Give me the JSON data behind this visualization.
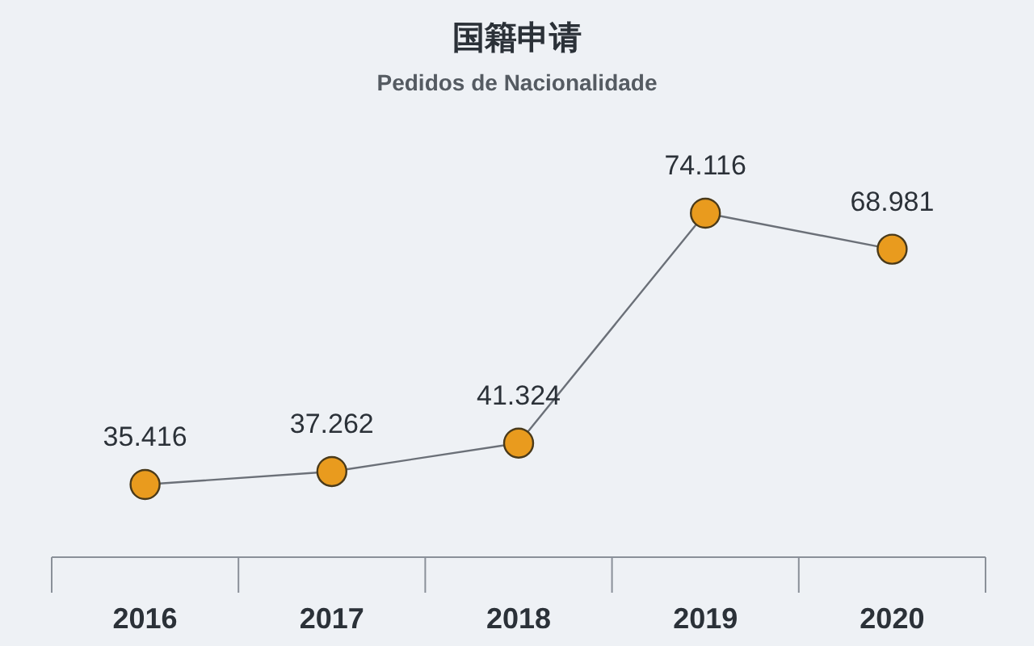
{
  "chart_data": {
    "type": "line",
    "title": "国籍申请",
    "subtitle": "Pedidos de Nacionalidade",
    "categories": [
      "2016",
      "2017",
      "2018",
      "2019",
      "2020"
    ],
    "series": [
      {
        "color": "#e99b1e",
        "values": [
          35416,
          37262,
          41324,
          74116,
          68981
        ],
        "value_labels": [
          "35.416",
          "37.262",
          "41.324",
          "74.116",
          "68.981"
        ]
      }
    ],
    "marker": "circle"
  }
}
